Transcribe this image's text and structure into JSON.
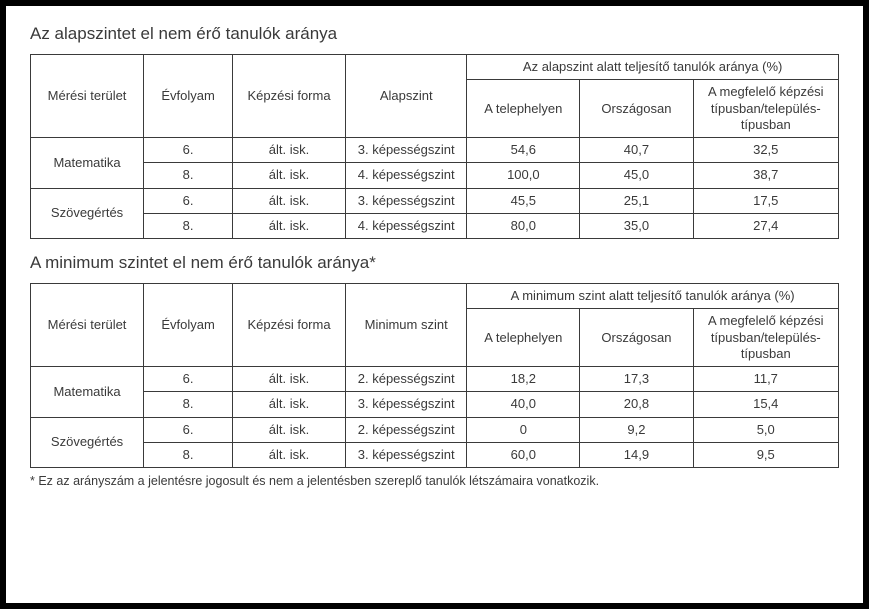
{
  "titles": {
    "table1": "Az alapszintet el nem érő tanulók aránya",
    "table2": "A minimum szintet el nem érő tanulók aránya*"
  },
  "headers": {
    "area": "Mérési terület",
    "grade": "Évfolyam",
    "form": "Képzési forma",
    "baseLevel": "Alapszint",
    "minLevel": "Minimum szint",
    "group1": "Az alapszint alatt teljesítő tanulók aránya (%)",
    "group2": "A minimum szint alatt teljesítő tanulók aránya (%)",
    "site": "A telephelyen",
    "national": "Országosan",
    "type": "A megfelelő képzési típusban/település-típusban"
  },
  "t1": {
    "rows": [
      {
        "area": "Matematika",
        "span": true,
        "grade": "6.",
        "form": "ált. isk.",
        "level": "3. képességszint",
        "site": "54,6",
        "nat": "40,7",
        "type": "32,5"
      },
      {
        "area": "",
        "grade": "8.",
        "form": "ált. isk.",
        "level": "4. képességszint",
        "site": "100,0",
        "nat": "45,0",
        "type": "38,7"
      },
      {
        "area": "Szövegértés",
        "span": true,
        "grade": "6.",
        "form": "ált. isk.",
        "level": "3. képességszint",
        "site": "45,5",
        "nat": "25,1",
        "type": "17,5"
      },
      {
        "area": "",
        "grade": "8.",
        "form": "ált. isk.",
        "level": "4. képességszint",
        "site": "80,0",
        "nat": "35,0",
        "type": "27,4"
      }
    ]
  },
  "t2": {
    "rows": [
      {
        "area": "Matematika",
        "span": true,
        "grade": "6.",
        "form": "ált. isk.",
        "level": "2. képességszint",
        "site": "18,2",
        "nat": "17,3",
        "type": "11,7"
      },
      {
        "area": "",
        "grade": "8.",
        "form": "ált. isk.",
        "level": "3. képességszint",
        "site": "40,0",
        "nat": "20,8",
        "type": "15,4"
      },
      {
        "area": "Szövegértés",
        "span": true,
        "grade": "6.",
        "form": "ált. isk.",
        "level": "2. képességszint",
        "site": "0",
        "nat": "9,2",
        "type": "5,0"
      },
      {
        "area": "",
        "grade": "8.",
        "form": "ált. isk.",
        "level": "3. képességszint",
        "site": "60,0",
        "nat": "14,9",
        "type": "9,5"
      }
    ]
  },
  "footnote": "* Ez az arányszám a jelentésre jogosult és nem a jelentésben szereplő tanulók létszámaira vonatkozik."
}
